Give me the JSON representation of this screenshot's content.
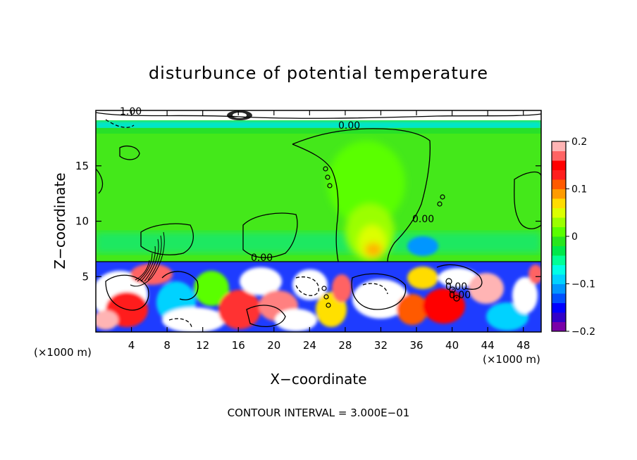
{
  "chart_data": {
    "type": "heatmap",
    "title": "disturbunce of potential temperature",
    "xlabel": "X−coordinate",
    "ylabel": "Z−coordinate",
    "x_unit": "(×1000 m)",
    "y_unit": "(×1000 m)",
    "xlim": [
      0,
      50
    ],
    "ylim": [
      0,
      20
    ],
    "x_ticks": [
      4,
      8,
      12,
      16,
      20,
      24,
      28,
      32,
      36,
      40,
      44,
      48
    ],
    "y_ticks": [
      5,
      10,
      15
    ],
    "footer": "CONTOUR INTERVAL = 3.000E−01",
    "contour_labels": [
      "1.00",
      "0.00",
      "0.00",
      "0.00",
      "0.00",
      "0.00"
    ],
    "colorbar": {
      "min": -0.2,
      "max": 0.2,
      "ticks": [
        "0.2",
        "0.1",
        "0",
        "−0.1",
        "−0.2"
      ],
      "tick_values": [
        0.2,
        0.1,
        0,
        -0.1,
        -0.2
      ],
      "colors": [
        "#7a00a8",
        "#3200c8",
        "#0000ff",
        "#0050ff",
        "#0096ff",
        "#00d2ff",
        "#00ffe6",
        "#00ff96",
        "#00e84a",
        "#28e61e",
        "#5aff00",
        "#9bff00",
        "#dcff00",
        "#ffdc00",
        "#ff9b00",
        "#ff5a00",
        "#ff1e1e",
        "#ff0000",
        "#ff6464",
        "#ffb4b4"
      ]
    }
  }
}
